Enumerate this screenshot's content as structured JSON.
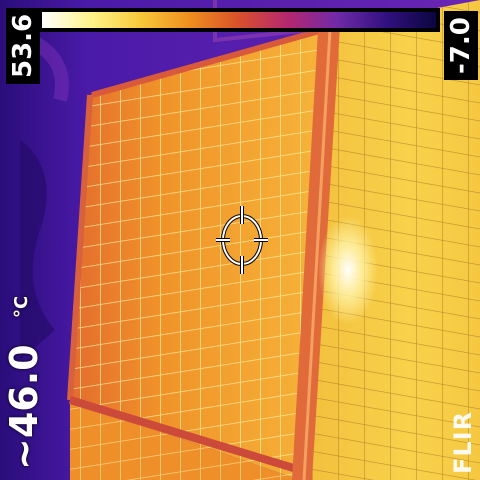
{
  "viewer": {
    "scale_max": "53.6",
    "scale_min": "-7.0",
    "spot_value": "~46.0",
    "unit": "°C",
    "brand": "FLIR"
  },
  "palette": {
    "name": "iron",
    "colors": [
      "#ffffff",
      "#fff38a",
      "#f7c93a",
      "#ef8f1e",
      "#d9502b",
      "#b42770",
      "#6f2aa8",
      "#31107f",
      "#0b0640"
    ]
  },
  "colors": {
    "background_cold": "#3b1597",
    "panel_warm": "#f2a12a",
    "panel_hot": "#f7d44b",
    "frame": "#e2713a",
    "grid_line": "#fff0a0"
  },
  "icons": {
    "crosshair": "spot-crosshair-icon"
  }
}
